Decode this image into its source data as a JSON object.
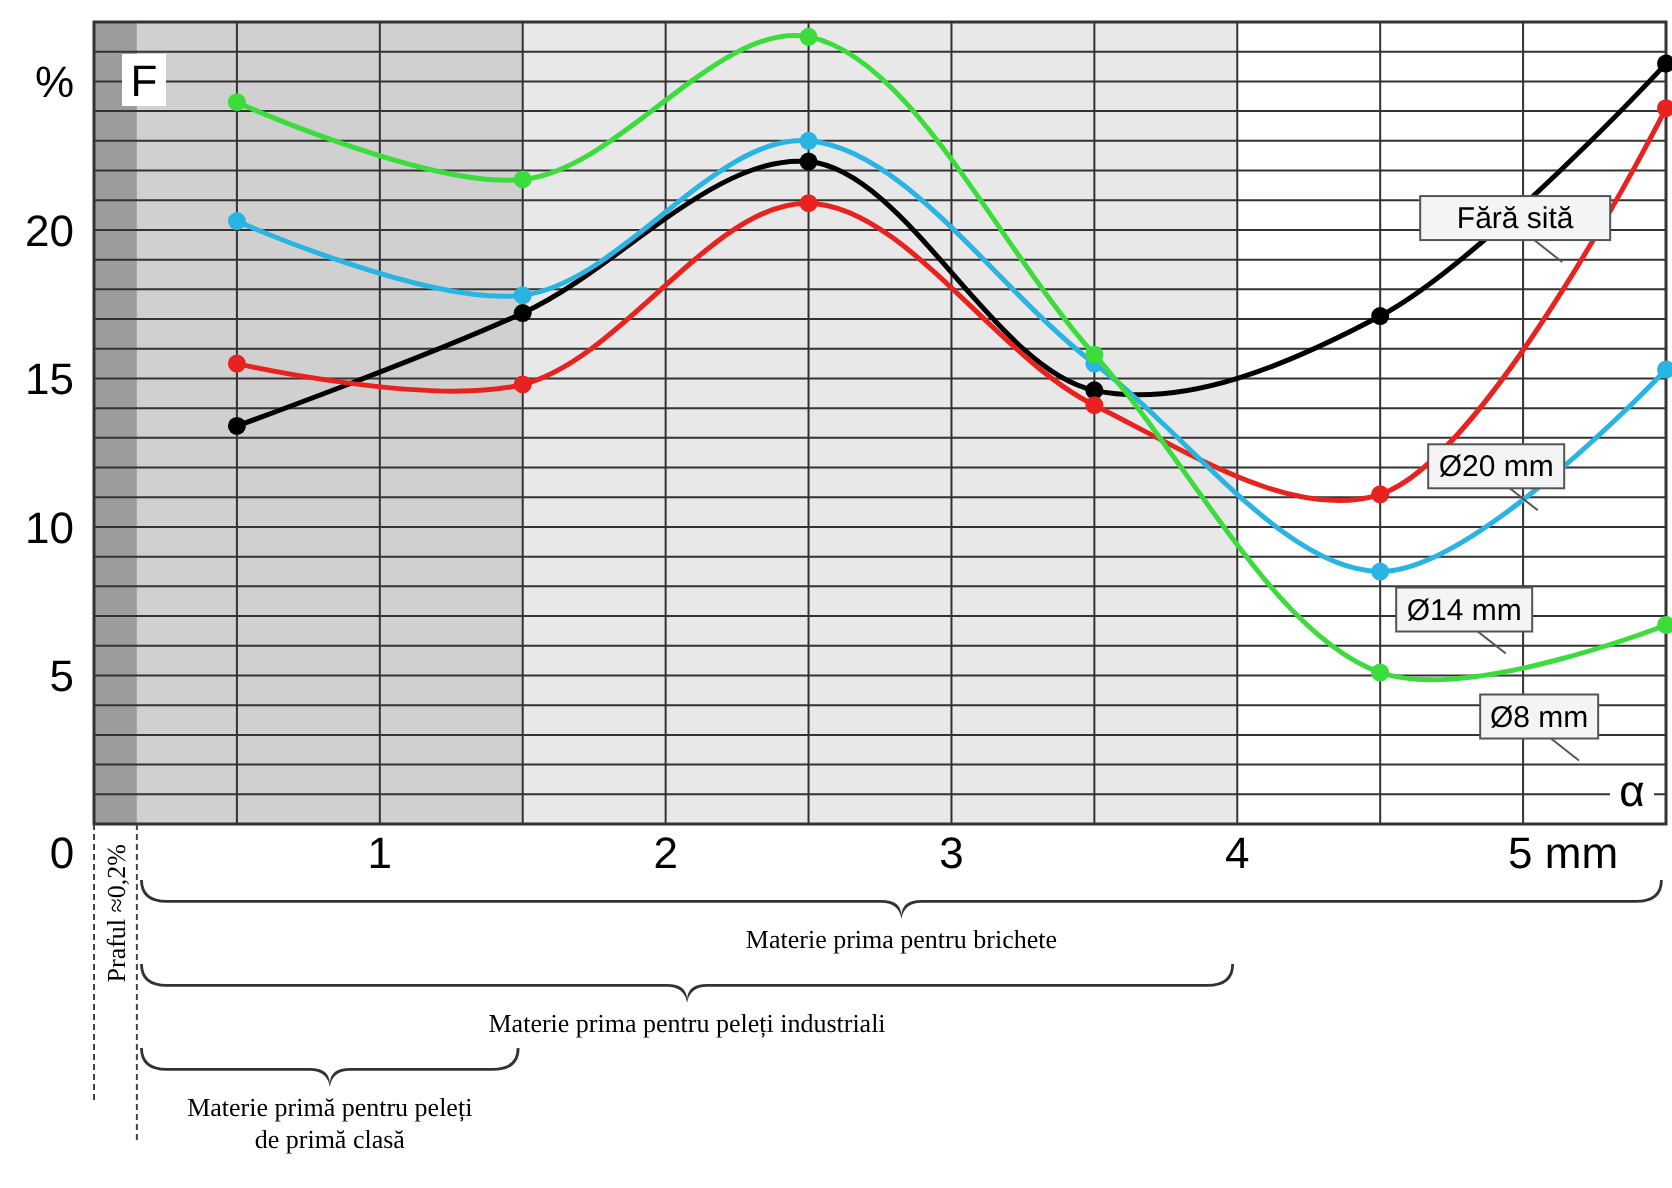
{
  "chart_data": {
    "type": "line",
    "xlabel": "α",
    "ylabel": "F",
    "x": [
      0.5,
      1.5,
      2.5,
      3.5,
      4.5,
      5.5
    ],
    "series": [
      {
        "name": "Fără sită",
        "color": "#000000",
        "values": [
          13.4,
          17.2,
          22.3,
          14.6,
          17.1,
          25.6
        ]
      },
      {
        "name": "Ø20 mm",
        "color": "#e8231f",
        "values": [
          15.5,
          14.8,
          20.9,
          14.1,
          11.1,
          24.1
        ]
      },
      {
        "name": "Ø14 mm",
        "color": "#2ab4e4",
        "values": [
          20.3,
          17.8,
          23.0,
          15.5,
          8.5,
          15.3
        ]
      },
      {
        "name": "Ø8 mm",
        "color": "#3ddc3d",
        "values": [
          24.3,
          21.7,
          26.5,
          15.8,
          5.1,
          6.7
        ]
      }
    ],
    "xlim": [
      0,
      5.5
    ],
    "ylim": [
      0,
      27
    ],
    "xticks": [
      0,
      {
        "value": 0.5,
        "label": null
      },
      1,
      {
        "value": 1.5,
        "label": null
      },
      2,
      {
        "value": 2.5,
        "label": null
      },
      3,
      {
        "value": 3.5,
        "label": null
      },
      4,
      {
        "value": 4.5,
        "label": null
      },
      {
        "value": 5,
        "label": "5  mm"
      }
    ],
    "yticks": [
      {
        "value": 1,
        "label": null
      },
      {
        "value": 2,
        "label": null
      },
      {
        "value": 3,
        "label": null
      },
      {
        "value": 4,
        "label": null
      },
      5,
      {
        "value": 6,
        "label": null
      },
      {
        "value": 7,
        "label": null
      },
      {
        "value": 8,
        "label": null
      },
      {
        "value": 9,
        "label": null
      },
      10,
      {
        "value": 11,
        "label": null
      },
      {
        "value": 12,
        "label": null
      },
      {
        "value": 13,
        "label": null
      },
      {
        "value": 14,
        "label": null
      },
      15,
      {
        "value": 16,
        "label": null
      },
      {
        "value": 17,
        "label": null
      },
      {
        "value": 18,
        "label": null
      },
      {
        "value": 19,
        "label": null
      },
      20,
      {
        "value": 21,
        "label": null
      },
      {
        "value": 22,
        "label": null
      },
      {
        "value": 23,
        "label": null
      },
      {
        "value": 24,
        "label": null
      },
      {
        "value": 25,
        "label": "%"
      },
      {
        "value": 26,
        "label": null
      }
    ],
    "bands": [
      {
        "axis": "x",
        "from": 0.15,
        "to": 4,
        "color": "#e8e8e8"
      },
      {
        "axis": "x",
        "from": 0.15,
        "to": 1.5,
        "color": "#d0d0d0"
      },
      {
        "axis": "x",
        "from": 0,
        "to": 0.15,
        "color": "#9c9c9c"
      }
    ],
    "annotations": [
      "Materie prima pentru brichete",
      "Materie prima pentru peleți industriali",
      "Materie primă pentru peleți de primă clasă",
      "Praful ≈0,2%"
    ],
    "grid": true,
    "marker": "circle",
    "line_style": "solid"
  }
}
